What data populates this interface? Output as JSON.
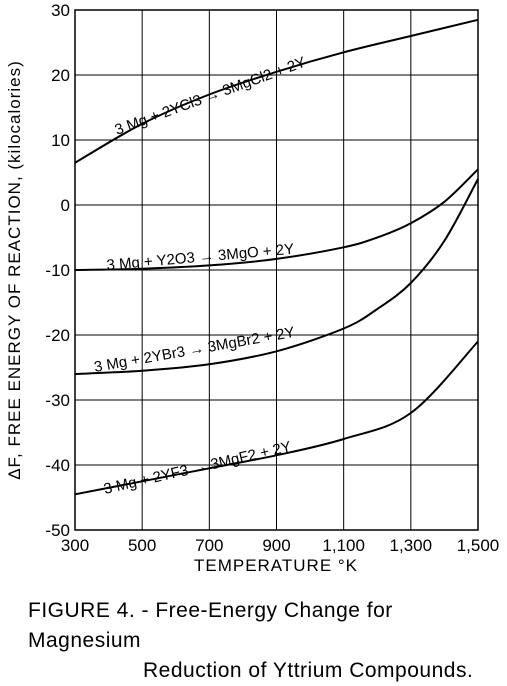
{
  "chart_data": {
    "type": "line",
    "title": "",
    "xlabel": "TEMPERATURE °K",
    "ylabel": "ΔF, FREE ENERGY OF REACTION, (kilocalories)",
    "xlim": [
      300,
      1500
    ],
    "ylim": [
      -50,
      30
    ],
    "x_ticks": [
      "300",
      "500",
      "700",
      "900",
      "1,100",
      "1,300",
      "1,500"
    ],
    "y_ticks": [
      "30",
      "20",
      "10",
      "0",
      "-10",
      "-20",
      "-30",
      "-40",
      "-50"
    ],
    "x_tick_values": [
      300,
      500,
      700,
      900,
      1100,
      1300,
      1500
    ],
    "y_tick_values": [
      30,
      20,
      10,
      0,
      -10,
      -20,
      -30,
      -40,
      -50
    ],
    "grid": true,
    "series": [
      {
        "name": "3 Mg + 2YCl3 → 3MgCl2 + 2Y",
        "x": [
          300,
          500,
          700,
          900,
          1100,
          1300,
          1500
        ],
        "y": [
          6.5,
          12.5,
          17.0,
          20.5,
          23.5,
          26.0,
          28.5
        ]
      },
      {
        "name": "3 Mg + Y2O3 → 3MgO + 2Y",
        "x": [
          300,
          500,
          700,
          900,
          1100,
          1200,
          1300,
          1400,
          1500
        ],
        "y": [
          -10.0,
          -9.8,
          -9.3,
          -8.3,
          -6.5,
          -5.0,
          -2.8,
          0.5,
          5.5
        ]
      },
      {
        "name": "3 Mg + 2YBr3 → 3MgBr2 + 2Y",
        "x": [
          300,
          500,
          700,
          900,
          1100,
          1200,
          1300,
          1400,
          1500
        ],
        "y": [
          -26.0,
          -25.5,
          -24.5,
          -22.5,
          -19.0,
          -16.0,
          -12.0,
          -5.5,
          4.0
        ]
      },
      {
        "name": "3 Mg + 2YF3 → 3MgF2 + 2Y",
        "x": [
          300,
          500,
          700,
          900,
          1100,
          1300,
          1500
        ],
        "y": [
          -44.5,
          -42.5,
          -40.5,
          -38.5,
          -36.0,
          -32.0,
          -21.0
        ]
      }
    ]
  },
  "caption": {
    "line1": "FIGURE 4. - Free-Energy Change for Magnesium",
    "line2": "Reduction of Yttrium Compounds."
  }
}
